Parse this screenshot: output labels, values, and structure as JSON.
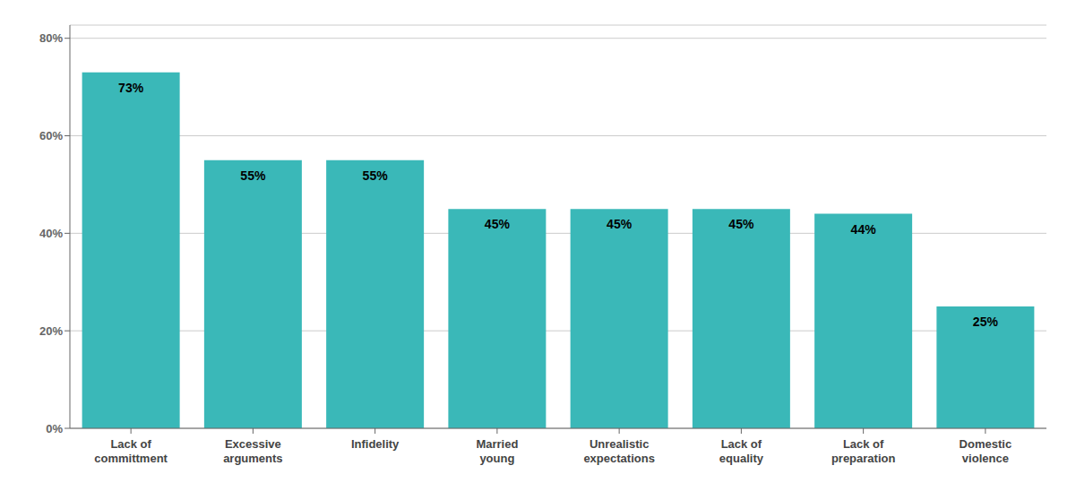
{
  "chart_data": {
    "type": "bar",
    "categories": [
      "Lack of\ncommittment",
      "Excessive\narguments",
      "Infidelity",
      "Married\nyoung",
      "Unrealistic\nexpectations",
      "Lack of\nequality",
      "Lack of\npreparation",
      "Domestic\nviolence"
    ],
    "values": [
      73,
      55,
      55,
      45,
      45,
      45,
      44,
      25
    ],
    "value_labels": [
      "73%",
      "55%",
      "55%",
      "45%",
      "45%",
      "45%",
      "44%",
      "25%"
    ],
    "data_labels": true,
    "color": "#3ab8b8",
    "ylim": [
      0,
      82.7
    ],
    "yticks": [
      {
        "value": 0,
        "label": "0%"
      },
      {
        "value": 20,
        "label": "20%"
      },
      {
        "value": 40,
        "label": "40%"
      },
      {
        "value": 60,
        "label": "60%"
      },
      {
        "value": 80,
        "label": "80%"
      }
    ],
    "grid": true
  }
}
